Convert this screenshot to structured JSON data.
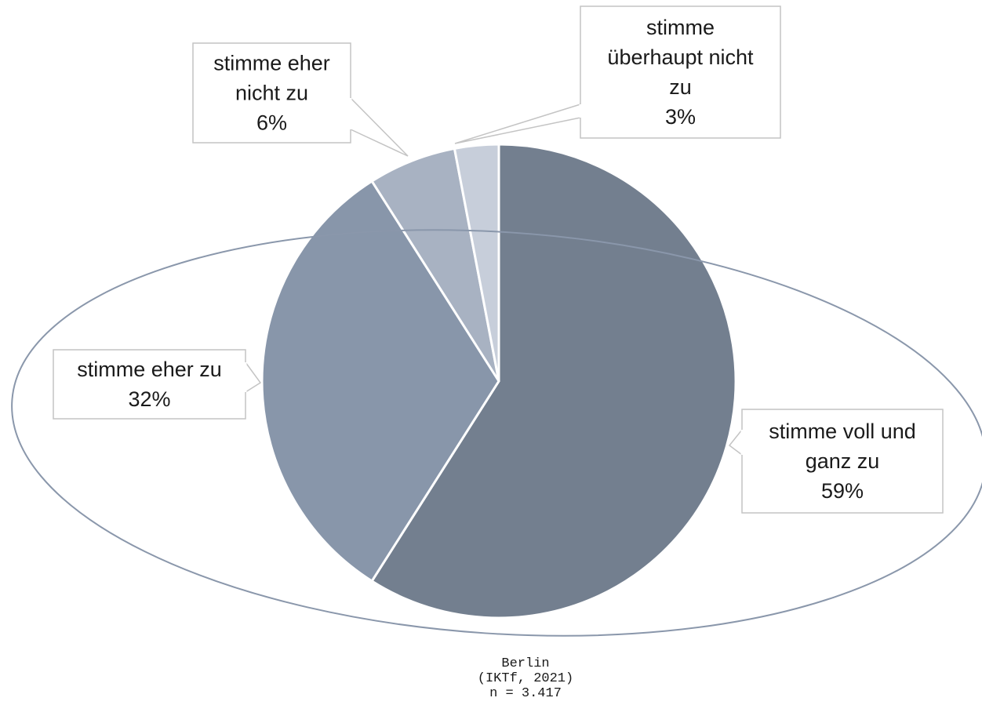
{
  "chart_data": {
    "type": "pie",
    "slices": [
      {
        "label": [
          "stimme voll und",
          "ganz zu"
        ],
        "value": 59,
        "value_label": "59%",
        "color": "#737f8f"
      },
      {
        "label": [
          "stimme eher zu"
        ],
        "value": 32,
        "value_label": "32%",
        "color": "#8896aa"
      },
      {
        "label": [
          "stimme eher",
          "nicht zu"
        ],
        "value": 6,
        "value_label": "6%",
        "color": "#a8b2c2"
      },
      {
        "label": [
          "stimme",
          "überhaupt nicht",
          "zu"
        ],
        "value": 3,
        "value_label": "3%",
        "color": "#c7ceda"
      }
    ],
    "start": "12 o'clock",
    "direction": "clockwise",
    "legend": "none",
    "annotation_ellipse_color": "#8a97ab"
  },
  "source": {
    "lines": [
      "Berlin",
      "(IKTf, 2021)",
      "n = 3.417"
    ]
  }
}
